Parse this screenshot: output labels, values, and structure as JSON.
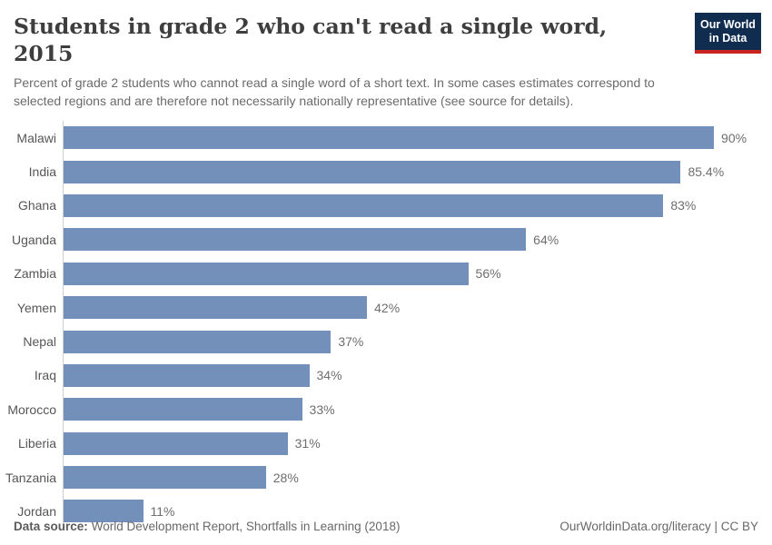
{
  "header": {
    "title": "Students in grade 2 who can't read a single word, 2015",
    "subtitle": "Percent of grade 2 students who cannot read a single word of a short text. In some cases estimates correspond to selected regions and are therefore not necessarily nationally representative (see source for details).",
    "logo": {
      "line1": "Our World",
      "line2": "in Data",
      "bg_color": "#102d50",
      "underline_color": "#cb2420"
    }
  },
  "chart_data": {
    "type": "bar",
    "orientation": "horizontal",
    "title": "Students in grade 2 who can't read a single word, 2015",
    "xlabel": "",
    "ylabel": "",
    "xlim": [
      0,
      90
    ],
    "grid": false,
    "legend": false,
    "bar_color": "#7290b9",
    "categories": [
      "Malawi",
      "India",
      "Ghana",
      "Uganda",
      "Zambia",
      "Yemen",
      "Nepal",
      "Iraq",
      "Morocco",
      "Liberia",
      "Tanzania",
      "Jordan"
    ],
    "values": [
      90,
      85.4,
      83,
      64,
      56,
      42,
      37,
      34,
      33,
      31,
      28,
      11
    ],
    "value_labels": [
      "90%",
      "85.4%",
      "83%",
      "64%",
      "56%",
      "42%",
      "37%",
      "34%",
      "33%",
      "31%",
      "28%",
      "11%"
    ]
  },
  "footer": {
    "datasource_label": "Data source:",
    "datasource_value": "World Development Report, Shortfalls in Learning (2018)",
    "right_text": "OurWorldinData.org/literacy | CC BY"
  }
}
